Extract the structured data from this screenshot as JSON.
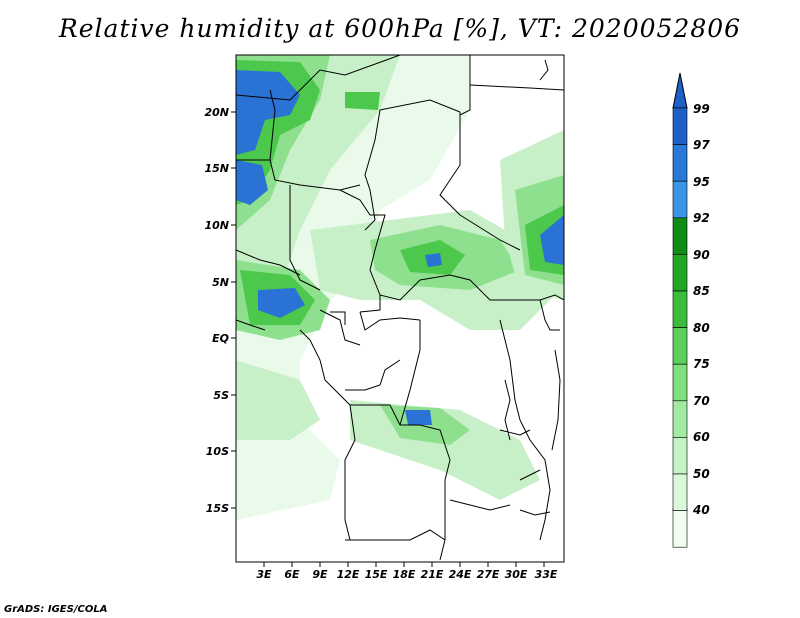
{
  "title": "Relative humidity at 600hPa [%], VT: 2020052806",
  "credit": "GrADS: IGES/COLA",
  "map": {
    "lat_labels": [
      "20N",
      "15N",
      "10N",
      "5N",
      "EQ",
      "5S",
      "10S",
      "15S"
    ],
    "lon_labels": [
      "3E",
      "6E",
      "9E",
      "12E",
      "15E",
      "18E",
      "21E",
      "24E",
      "27E",
      "30E",
      "33E"
    ]
  },
  "colorbar": {
    "labels": [
      "99",
      "97",
      "95",
      "92",
      "90",
      "85",
      "80",
      "75",
      "70",
      "60",
      "50",
      "40"
    ],
    "colors": [
      "#1f60c8",
      "#2a78d8",
      "#3c96e6",
      "#0e8c14",
      "#24a824",
      "#3cbc3c",
      "#5ad05a",
      "#7ee07e",
      "#a2eaa2",
      "#c4f2c4",
      "#dcf8dc",
      "#f0fcf0"
    ]
  },
  "humidity_palette": {
    "light": "#eafaea",
    "pale": "#c8f0c8",
    "mid": "#8ee08e",
    "green": "#4cc84c",
    "dark": "#1e9e1e",
    "blue": "#2a72d4"
  }
}
